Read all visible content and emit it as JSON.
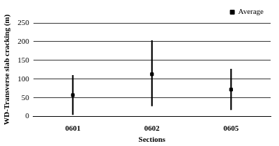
{
  "chart_data": {
    "type": "scatter",
    "x_label": "Sections",
    "y_label": "WD-Transverse slab cracking (m)",
    "categories": [
      "0601",
      "0602",
      "0605"
    ],
    "series": [
      {
        "name": "Average",
        "color": "#000000",
        "marker": "square",
        "values": [
          57,
          113,
          72
        ],
        "error_low": [
          5,
          28,
          18
        ],
        "error_high": [
          110,
          203,
          127
        ]
      }
    ],
    "ylim": [
      0,
      250
    ],
    "yticks": [
      0,
      50,
      100,
      150,
      200,
      250
    ],
    "grid": true,
    "legend": "top right"
  }
}
